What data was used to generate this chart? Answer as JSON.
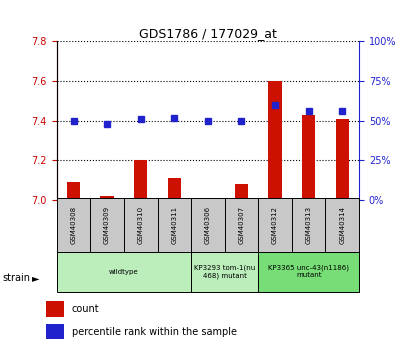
{
  "title": "GDS1786 / 177029_at",
  "samples": [
    "GSM40308",
    "GSM40309",
    "GSM40310",
    "GSM40311",
    "GSM40306",
    "GSM40307",
    "GSM40312",
    "GSM40313",
    "GSM40314"
  ],
  "count_values": [
    7.09,
    7.02,
    7.2,
    7.11,
    7.01,
    7.08,
    7.6,
    7.43,
    7.41
  ],
  "percentile_values": [
    50,
    48,
    51,
    52,
    50,
    50,
    60,
    56,
    56
  ],
  "ylim_left": [
    7.0,
    7.8
  ],
  "ylim_right": [
    0,
    100
  ],
  "yticks_left": [
    7.0,
    7.2,
    7.4,
    7.6,
    7.8
  ],
  "yticks_right": [
    0,
    25,
    50,
    75,
    100
  ],
  "bar_color": "#CC1100",
  "dot_color": "#2222CC",
  "grid_color": "#000000",
  "group_spans": [
    [
      0,
      3,
      "wildtype",
      "#BBEEBB"
    ],
    [
      4,
      5,
      "KP3293 tom-1(nu\n468) mutant",
      "#BBEEBB"
    ],
    [
      6,
      8,
      "KP3365 unc-43(n1186)\nmutant",
      "#77DD77"
    ]
  ],
  "legend_count": "count",
  "legend_pct": "percentile rank within the sample",
  "left_axis_color": "#CC0000",
  "right_axis_color": "#2222CC",
  "sample_box_color": "#C8C8C8",
  "bar_width": 0.4
}
